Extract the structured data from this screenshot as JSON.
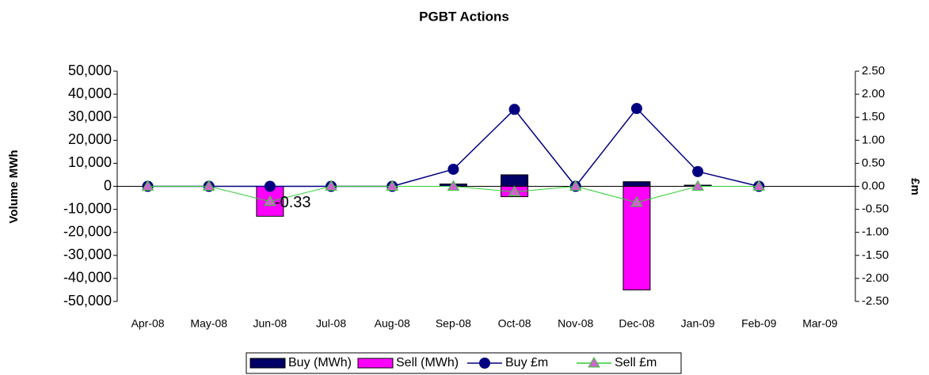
{
  "chart_data": {
    "type": "bar_line",
    "title": "PGBT Actions",
    "y_label": "Volume MWh",
    "y2_label": "£m",
    "categories": [
      "Apr-08",
      "May-08",
      "Jun-08",
      "Jul-08",
      "Aug-08",
      "Sep-08",
      "Oct-08",
      "Nov-08",
      "Dec-08",
      "Jan-09",
      "Feb-09",
      "Mar-09"
    ],
    "series": [
      {
        "name": "Buy (MWh)",
        "kind": "bar",
        "color": "#000066",
        "values": [
          0,
          0,
          0,
          0,
          0,
          1000,
          5000,
          0,
          2000,
          500,
          0,
          null
        ]
      },
      {
        "name": "Sell (MWh)",
        "kind": "bar",
        "color": "#ff00ff",
        "values": [
          0,
          0,
          -13000,
          0,
          0,
          0,
          -4500,
          0,
          -45000,
          0,
          0,
          null
        ]
      },
      {
        "name": "Buy £m",
        "kind": "line",
        "axis": "y2",
        "color": "#000080",
        "marker": "circle",
        "values": [
          0,
          0,
          0,
          0,
          0,
          0.37,
          1.67,
          0,
          1.69,
          0.32,
          0,
          null
        ]
      },
      {
        "name": "Sell £m",
        "kind": "line",
        "axis": "y2",
        "color": "#33cc33",
        "marker": "triangle",
        "marker_color": "#cc66cc",
        "values": [
          0,
          0,
          -0.33,
          0,
          0,
          0,
          -0.12,
          0,
          -0.35,
          0,
          0,
          null
        ],
        "value_labels": [
          null,
          null,
          "-0.33",
          null,
          null,
          null,
          null,
          null,
          null,
          null,
          null,
          null
        ]
      }
    ],
    "ylim": [
      -50000,
      50000
    ],
    "yticks": [
      {
        "value": -50000,
        "label": "-50,000"
      },
      {
        "value": -40000,
        "label": "-40,000"
      },
      {
        "value": -30000,
        "label": "-30,000"
      },
      {
        "value": -20000,
        "label": "-20,000"
      },
      {
        "value": -10000,
        "label": "-10,000"
      },
      0,
      {
        "value": 10000,
        "label": "10,000"
      },
      {
        "value": 20000,
        "label": "20,000"
      },
      {
        "value": 30000,
        "label": "30,000"
      },
      {
        "value": 40000,
        "label": "40,000"
      },
      {
        "value": 50000,
        "label": "50,000"
      }
    ],
    "y2lim": [
      -2.5,
      2.5
    ],
    "y2ticks": [
      {
        "value": -2.5,
        "label": "-2.50"
      },
      {
        "value": -2,
        "label": "-2.00"
      },
      {
        "value": -1.5,
        "label": "-1.50"
      },
      {
        "value": -1,
        "label": "-1.00"
      },
      {
        "value": -0.5,
        "label": "-0.50"
      },
      {
        "value": 0,
        "label": "0.00"
      },
      {
        "value": 0.5,
        "label": "0.50"
      },
      {
        "value": 1,
        "label": "1.00"
      },
      {
        "value": 1.5,
        "label": "1.50"
      },
      {
        "value": 2,
        "label": "2.00"
      },
      {
        "value": 2.5,
        "label": "2.50"
      }
    ],
    "legend": "bottom"
  }
}
